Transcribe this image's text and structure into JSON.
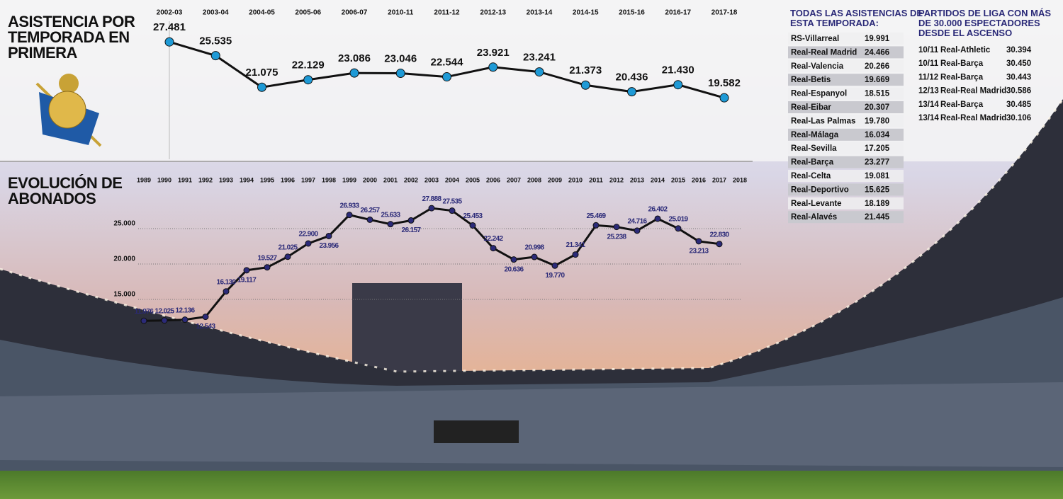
{
  "chart_data": [
    {
      "type": "line",
      "title": "ASISTENCIA POR TEMPORADA EN PRIMERA",
      "categories": [
        "2002-03",
        "2003-04",
        "2004-05",
        "2005-06",
        "2006-07",
        "2010-11",
        "2011-12",
        "2012-13",
        "2013-14",
        "2014-15",
        "2015-16",
        "2016-17",
        "2017-18"
      ],
      "values": [
        27481,
        25535,
        21075,
        22129,
        23086,
        23046,
        22544,
        23921,
        23241,
        21373,
        20436,
        21430,
        19582
      ],
      "value_labels": [
        "27.481",
        "25.535",
        "21.075",
        "22.129",
        "23.086",
        "23.046",
        "22.544",
        "23.921",
        "23.241",
        "21.373",
        "20.436",
        "21.430",
        "19.582"
      ],
      "color": "#1e9ad6",
      "ylim": [
        18000,
        30000
      ]
    },
    {
      "type": "line",
      "title": "EVOLUCIÓN DE ABONADOS",
      "categories": [
        "1989",
        "1990",
        "1991",
        "1992",
        "1993",
        "1994",
        "1995",
        "1996",
        "1997",
        "1998",
        "1999",
        "2000",
        "2001",
        "2002",
        "2003",
        "2004",
        "2005",
        "2006",
        "2007",
        "2008",
        "2009",
        "2010",
        "2011",
        "2012",
        "2013",
        "2014",
        "2015",
        "2016",
        "2017",
        "2018"
      ],
      "values": [
        11976,
        12025,
        12136,
        12543,
        16130,
        19117,
        19527,
        21025,
        22900,
        23956,
        26933,
        26257,
        25633,
        26157,
        27888,
        27535,
        25453,
        22242,
        20636,
        20998,
        19770,
        21341,
        25469,
        25238,
        24716,
        26402,
        25019,
        23213,
        22830,
        null
      ],
      "value_labels": [
        "11.976",
        "12.025",
        "12.136",
        "12.543",
        "16.130",
        "19.117",
        "19.527",
        "21.025",
        "22.900",
        "23.956",
        "26.933",
        "26.257",
        "25.633",
        "26.157",
        "27.888",
        "27.535",
        "25.453",
        "22.242",
        "20.636",
        "20.998",
        "19.770",
        "21.341",
        "25.469",
        "25.238",
        "24.716",
        "26.402",
        "25.019",
        "23.213",
        "22.830",
        null
      ],
      "color": "#2b2a78",
      "ylim": [
        10000,
        30000
      ],
      "yticks": [
        {
          "value": 15000,
          "label": "15.000"
        },
        {
          "value": 20000,
          "label": "20.000"
        },
        {
          "value": 25000,
          "label": "25.000"
        }
      ],
      "grid": true
    }
  ],
  "tables": [
    {
      "title": "TODAS LAS ASISTENCIAS DE ESTA TEMPORADA:",
      "rows": [
        [
          "RS-Villarreal",
          "19.991"
        ],
        [
          "Real-Real Madrid",
          "24.466"
        ],
        [
          "Real-Valencia",
          "20.266"
        ],
        [
          "Real-Betis",
          "19.669"
        ],
        [
          "Real-Espanyol",
          "18.515"
        ],
        [
          "Real-Eibar",
          "20.307"
        ],
        [
          "Real-Las Palmas",
          "19.780"
        ],
        [
          "Real-Málaga",
          "16.034"
        ],
        [
          "Real-Sevilla",
          "17.205"
        ],
        [
          "Real-Barça",
          "23.277"
        ],
        [
          "Real-Celta",
          "19.081"
        ],
        [
          "Real-Deportivo",
          "15.625"
        ],
        [
          "Real-Levante",
          "18.189"
        ],
        [
          "Real-Alavés",
          "21.445"
        ]
      ]
    },
    {
      "title": "PARTIDOS DE LIGA CON MÁS DE 30.000 ESPECTADORES DESDE EL ASCENSO",
      "rows": [
        [
          "10/11",
          "Real-Athletic",
          "30.394"
        ],
        [
          "10/11",
          "Real-Barça",
          "30.450"
        ],
        [
          "11/12",
          "Real-Barça",
          "30.443"
        ],
        [
          "12/13",
          "Real-Real Madrid",
          "30.586"
        ],
        [
          "13/14",
          "Real-Barça",
          "30.485"
        ],
        [
          "13/14",
          "Real-Real Madrid",
          "30.106"
        ]
      ]
    }
  ]
}
